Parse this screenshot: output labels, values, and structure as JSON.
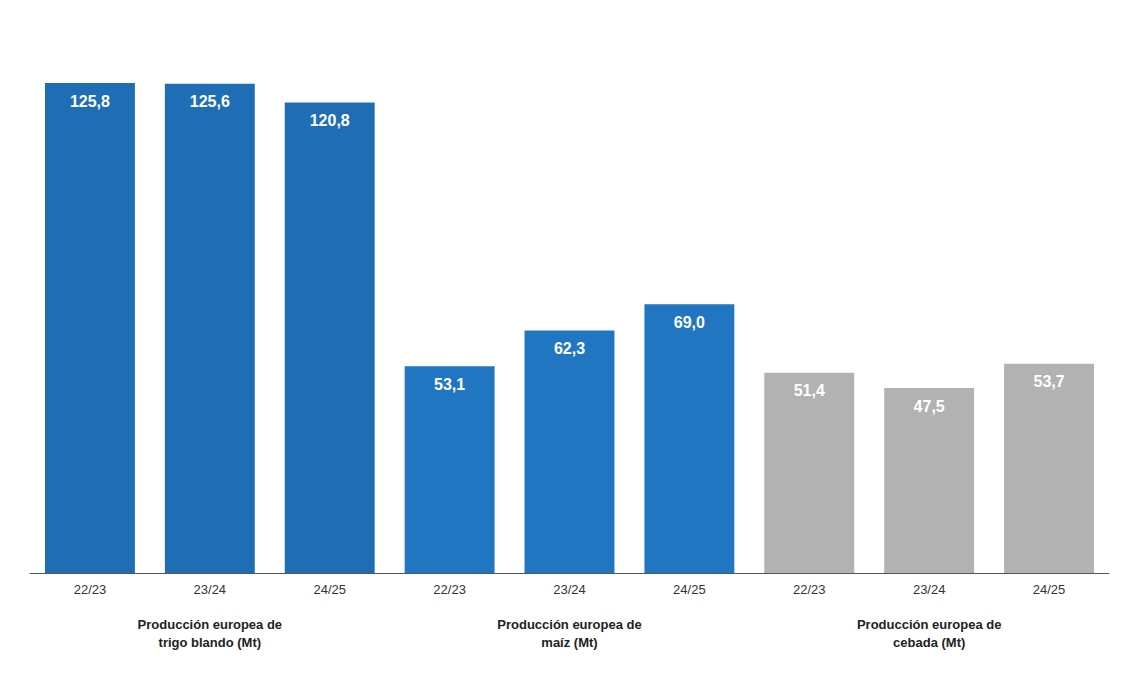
{
  "chart_data": {
    "type": "bar",
    "categories": [
      "22/23",
      "23/24",
      "24/25",
      "22/23",
      "23/24",
      "24/25",
      "22/23",
      "23/24",
      "24/25"
    ],
    "values": [
      125.8,
      125.6,
      120.8,
      53.1,
      62.3,
      69.0,
      51.4,
      47.5,
      53.7
    ],
    "value_labels": [
      "125,8",
      "125,6",
      "120,8",
      "53,1",
      "62,3",
      "69,0",
      "51,4",
      "47,5",
      "53,7"
    ],
    "colors": [
      "#1F6EB5",
      "#1F6EB5",
      "#1F6EB5",
      "#2176C2",
      "#2176C2",
      "#2176C2",
      "#B2B2B2",
      "#B2B2B2",
      "#B2B2B2"
    ],
    "ylim": [
      0,
      142
    ],
    "data_labels": true,
    "tick_labels": "x",
    "grid": false,
    "annotations": [
      "Producción europea de\ntrigo blando (Mt)",
      "Producción europea de\nmaíz (Mt)",
      "Producción europea de\ncebada (Mt)"
    ]
  }
}
